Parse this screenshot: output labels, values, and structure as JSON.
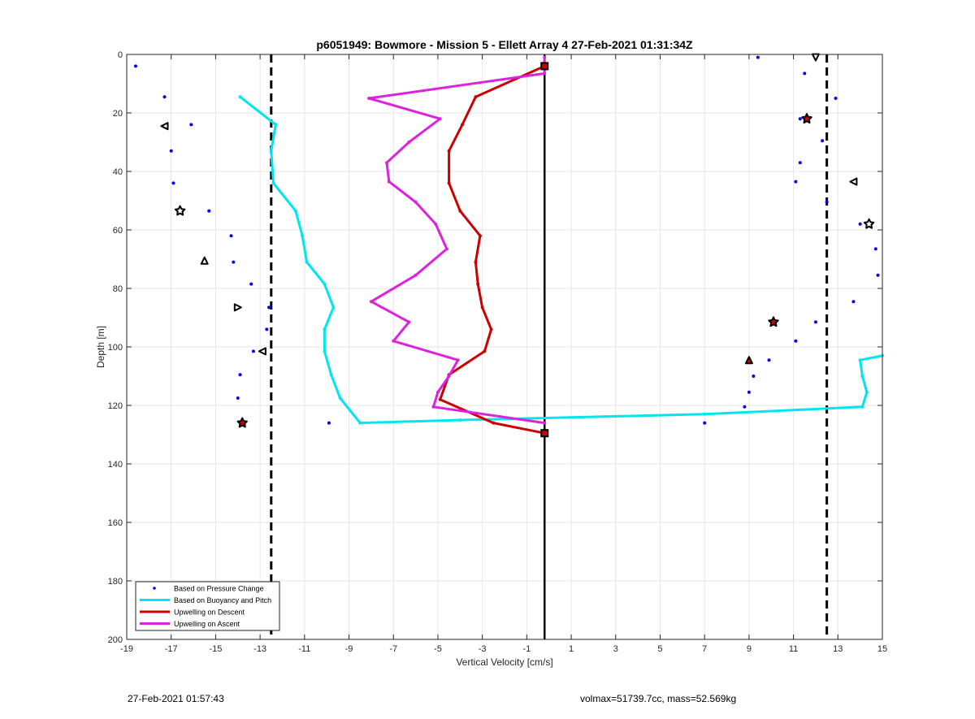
{
  "chart_data": {
    "type": "line",
    "title": "p6051949: Bowmore - Mission 5 - Ellett Array 4 27-Feb-2021 01:31:34Z",
    "xlabel": "Vertical Velocity [cm/s]",
    "ylabel": "Depth [m]",
    "xlim": [
      -19,
      15
    ],
    "ylim": [
      0,
      200
    ],
    "y_reversed": true,
    "grid": true,
    "legend_position": "bottom-left",
    "xticks": [
      -19,
      -17,
      -15,
      -13,
      -11,
      -9,
      -7,
      -5,
      -3,
      -1,
      1,
      3,
      5,
      7,
      9,
      11,
      13,
      15
    ],
    "yticks": [
      0,
      20,
      40,
      60,
      80,
      100,
      120,
      140,
      160,
      180,
      200
    ],
    "series": [
      {
        "name": "Based on Pressure Change",
        "style": "points",
        "color": "#0000ff",
        "points": [
          [
            -18.6,
            4
          ],
          [
            -17.3,
            14.5
          ],
          [
            -16.1,
            24
          ],
          [
            -17.0,
            33
          ],
          [
            -16.9,
            44
          ],
          [
            -15.3,
            53.5
          ],
          [
            -14.3,
            62
          ],
          [
            -14.2,
            71
          ],
          [
            -13.4,
            78.5
          ],
          [
            -12.6,
            86.5
          ],
          [
            -12.7,
            94
          ],
          [
            -13.3,
            101.5
          ],
          [
            -13.9,
            109.5
          ],
          [
            -14.0,
            117.5
          ],
          [
            -13.8,
            126
          ],
          [
            -9.9,
            126
          ],
          [
            7.0,
            126
          ],
          [
            8.8,
            120.5
          ],
          [
            9.0,
            115.5
          ],
          [
            9.2,
            110
          ],
          [
            9.9,
            104.5
          ],
          [
            11.1,
            98
          ],
          [
            12.0,
            91.5
          ],
          [
            13.7,
            84.5
          ],
          [
            14.8,
            75.5
          ],
          [
            14.7,
            66.5
          ],
          [
            14.0,
            58
          ],
          [
            12.5,
            50.5
          ],
          [
            11.1,
            43.5
          ],
          [
            11.3,
            37
          ],
          [
            12.3,
            29.5
          ],
          [
            11.3,
            22
          ],
          [
            12.9,
            15
          ],
          [
            11.5,
            6.5
          ],
          [
            9.4,
            1
          ],
          [
            -0.2,
            4
          ],
          [
            -0.2,
            129.5
          ]
        ]
      },
      {
        "name": "Based on Buoyancy and Pitch",
        "style": "line",
        "color": "#00e5ee",
        "points": [
          [
            -13.9,
            14.5
          ],
          [
            -12.3,
            24
          ],
          [
            -12.5,
            33
          ],
          [
            -12.4,
            44
          ],
          [
            -11.4,
            53.5
          ],
          [
            -11.1,
            62
          ],
          [
            -10.9,
            71
          ],
          [
            -10.1,
            78.5
          ],
          [
            -9.7,
            86.5
          ],
          [
            -10.1,
            94
          ],
          [
            -10.1,
            101.5
          ],
          [
            -9.8,
            109.5
          ],
          [
            -9.4,
            117.5
          ],
          [
            -8.5,
            126
          ],
          [
            -4.0,
            125
          ],
          [
            7.0,
            123
          ],
          [
            14.1,
            120.5
          ],
          [
            14.3,
            115.5
          ],
          [
            14.1,
            110
          ],
          [
            14.0,
            104.5
          ],
          [
            15.0,
            103
          ]
        ]
      },
      {
        "name": "Upwelling on Descent",
        "style": "line",
        "color": "#cc0000",
        "points": [
          [
            -0.2,
            4
          ],
          [
            -3.3,
            14.5
          ],
          [
            -3.9,
            24
          ],
          [
            -4.5,
            33
          ],
          [
            -4.5,
            44
          ],
          [
            -4.0,
            53.5
          ],
          [
            -3.1,
            62
          ],
          [
            -3.3,
            71
          ],
          [
            -3.2,
            78.5
          ],
          [
            -3.0,
            86.5
          ],
          [
            -2.6,
            94
          ],
          [
            -2.9,
            101.5
          ],
          [
            -4.5,
            109.5
          ],
          [
            -4.9,
            118
          ],
          [
            -2.5,
            126
          ],
          [
            -0.2,
            129.5
          ]
        ]
      },
      {
        "name": "Upwelling on Ascent",
        "style": "line",
        "color": "#dd22dd",
        "points": [
          [
            -0.2,
            1
          ],
          [
            -0.2,
            6.5
          ],
          [
            -8.1,
            15
          ],
          [
            -4.9,
            22
          ],
          [
            -6.3,
            30
          ],
          [
            -7.3,
            37
          ],
          [
            -7.2,
            43.5
          ],
          [
            -6.0,
            50.5
          ],
          [
            -5.1,
            58
          ],
          [
            -4.6,
            66.5
          ],
          [
            -6.0,
            75.5
          ],
          [
            -8.0,
            84.5
          ],
          [
            -6.3,
            91.5
          ],
          [
            -7.0,
            98
          ],
          [
            -4.1,
            104.5
          ],
          [
            -4.5,
            110
          ],
          [
            -5.0,
            115.5
          ],
          [
            -5.2,
            120.5
          ],
          [
            -0.2,
            126
          ]
        ]
      }
    ],
    "reference_lines": [
      {
        "type": "vertical",
        "x": -12.5,
        "style": "dashed",
        "color": "#000000"
      },
      {
        "type": "vertical",
        "x": 12.5,
        "style": "dashed",
        "color": "#000000"
      },
      {
        "type": "vertical",
        "x": -0.2,
        "style": "solid",
        "color": "#000000"
      }
    ],
    "markers": [
      {
        "shape": "triangle-left",
        "x": -17.3,
        "y": 24.5,
        "fill": "#ffffff"
      },
      {
        "shape": "star",
        "x": -16.6,
        "y": 53.5,
        "fill": "#ffffff"
      },
      {
        "shape": "triangle-up",
        "x": -15.5,
        "y": 70.5,
        "fill": "#ffffff"
      },
      {
        "shape": "triangle-right",
        "x": -14.0,
        "y": 86.5,
        "fill": "#ffffff"
      },
      {
        "shape": "triangle-left",
        "x": -12.9,
        "y": 101.5,
        "fill": "#ffffff"
      },
      {
        "shape": "star",
        "x": -13.8,
        "y": 126,
        "fill": "#cc0000"
      },
      {
        "shape": "triangle-down",
        "x": 12.0,
        "y": 1,
        "fill": "#ffffff"
      },
      {
        "shape": "star",
        "x": 11.6,
        "y": 22,
        "fill": "#cc0000"
      },
      {
        "shape": "triangle-left",
        "x": 13.7,
        "y": 43.5,
        "fill": "#ffffff"
      },
      {
        "shape": "star",
        "x": 14.4,
        "y": 58,
        "fill": "#ffffff"
      },
      {
        "shape": "star",
        "x": 10.1,
        "y": 91.5,
        "fill": "#cc0000"
      },
      {
        "shape": "triangle-up",
        "x": 9.0,
        "y": 104.5,
        "fill": "#cc0000"
      },
      {
        "shape": "square",
        "x": -0.2,
        "y": 4,
        "fill": "#cc0000"
      },
      {
        "shape": "square",
        "x": -0.2,
        "y": 129.5,
        "fill": "#cc0000"
      }
    ]
  },
  "footer": {
    "timestamp": "27-Feb-2021 01:57:43",
    "info": "volmax=51739.7cc, mass=52.569kg"
  }
}
